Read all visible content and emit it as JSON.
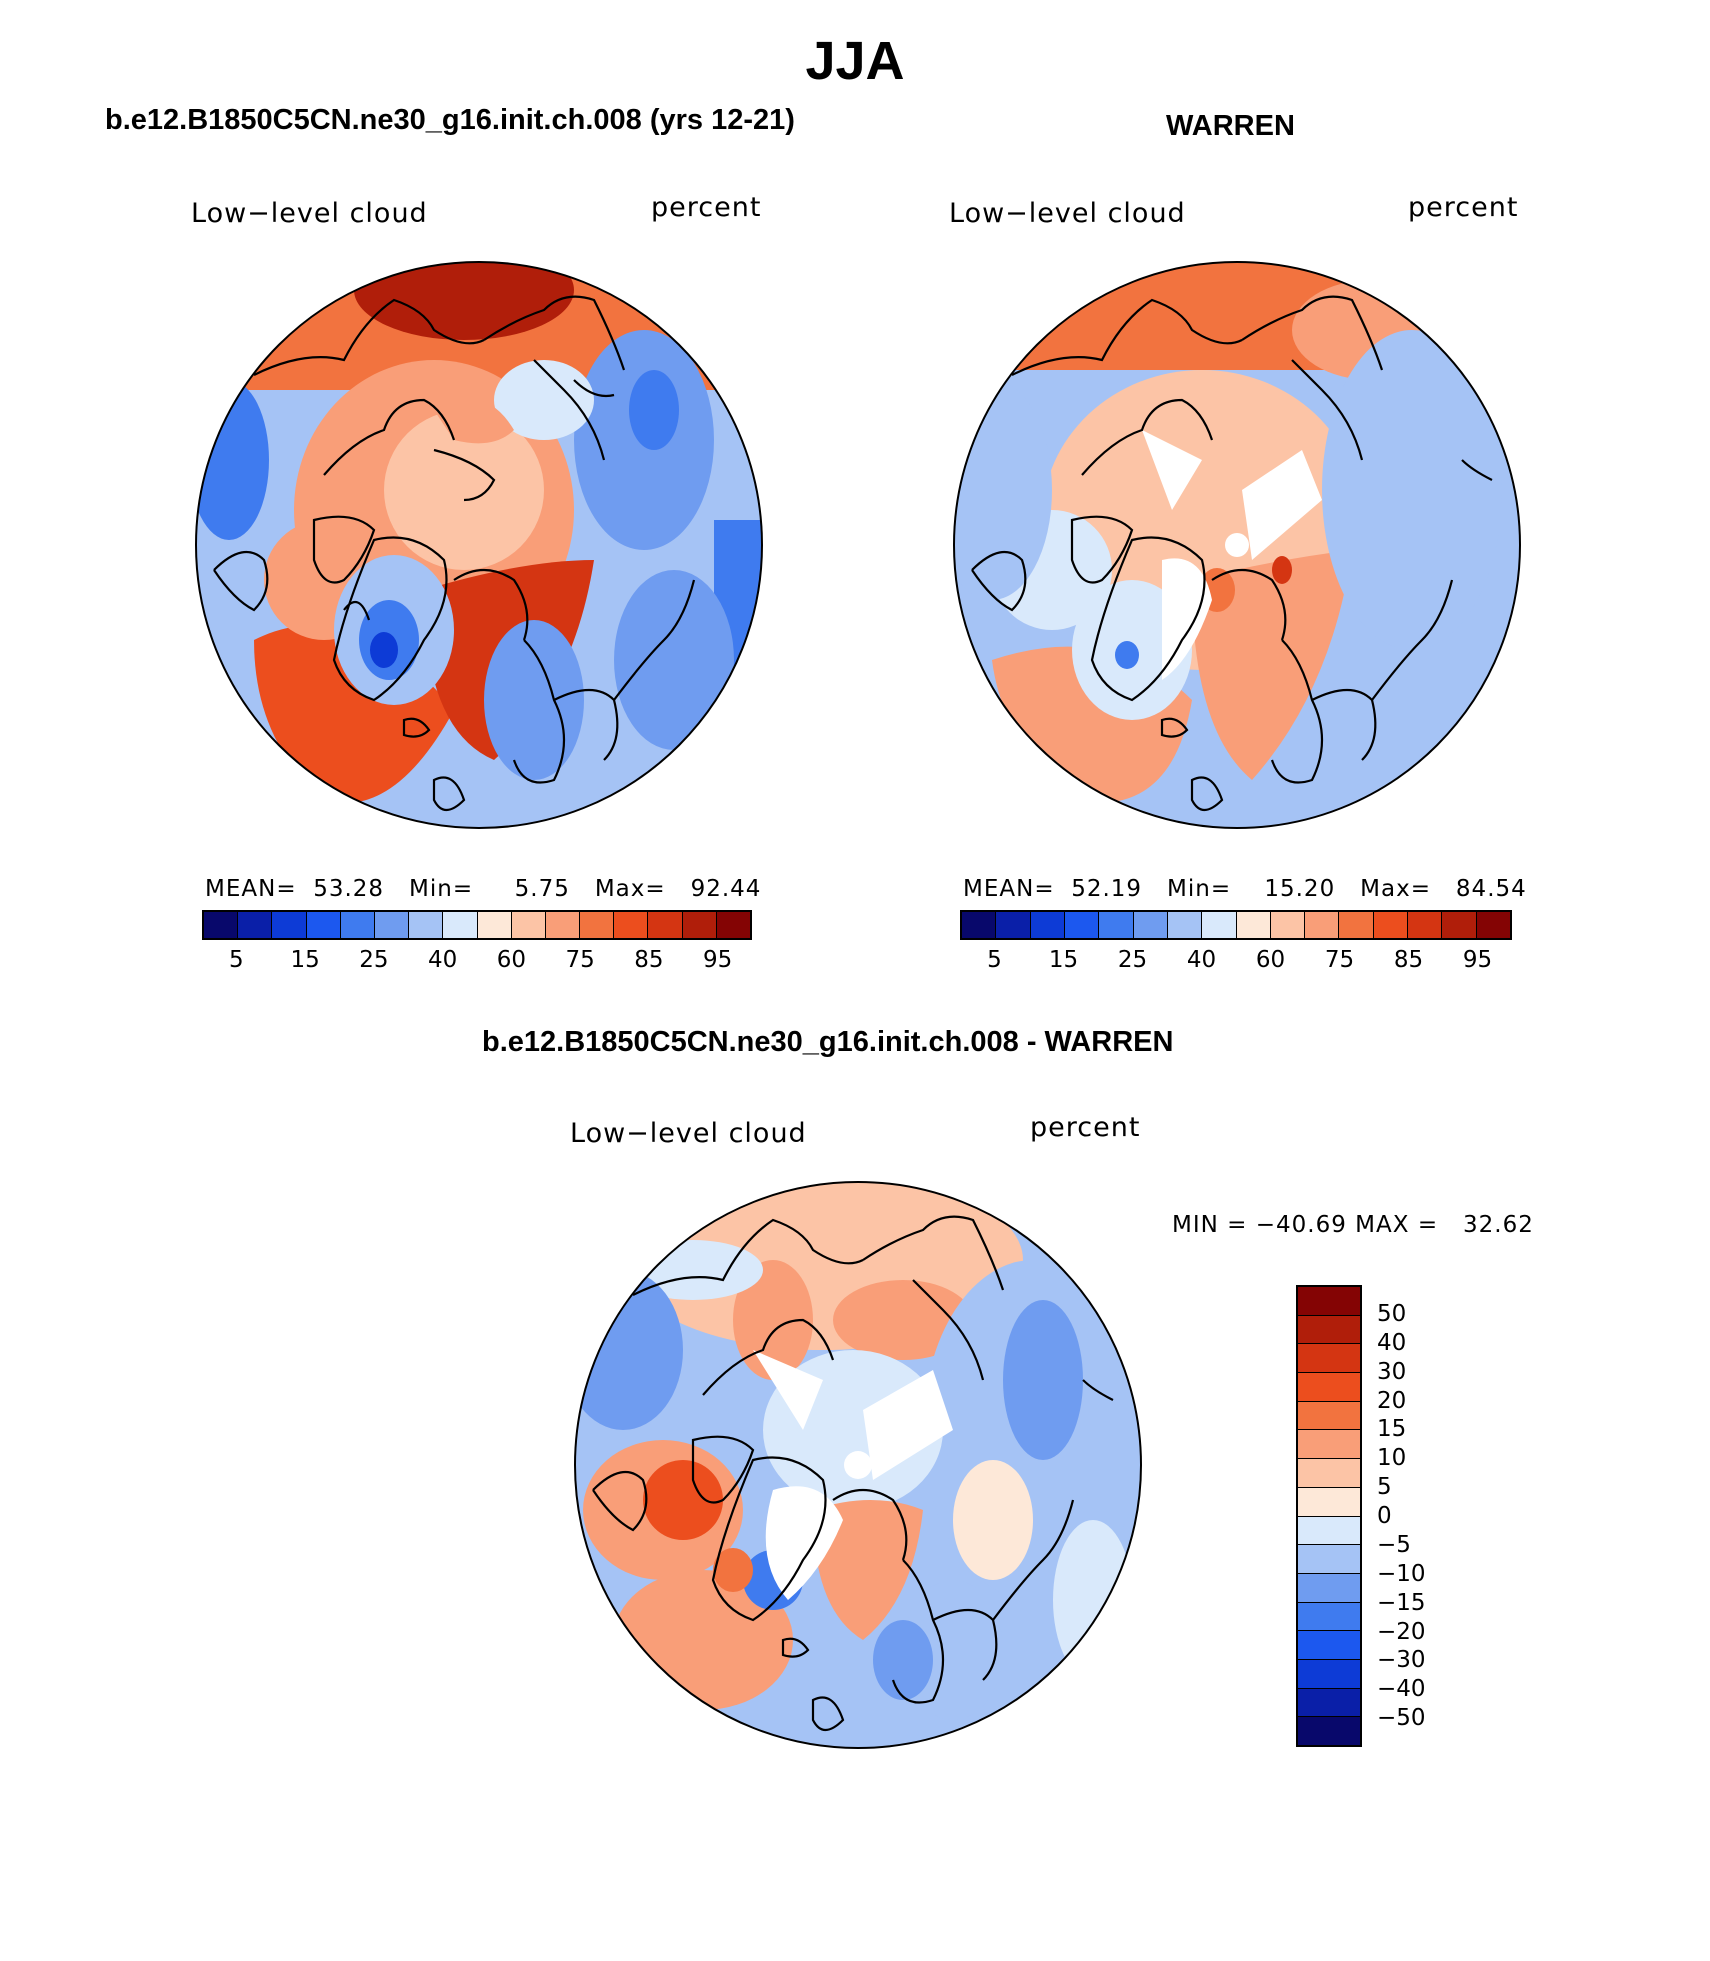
{
  "figure": {
    "title": "JJA"
  },
  "panels": {
    "model": {
      "title": "b.e12.B1850C5CN.ne30_g16.init.ch.008 (yrs 12-21)",
      "left_label": "Low−level cloud",
      "right_label": "percent",
      "stats": {
        "mean_label": "MEAN=",
        "mean": "53.28",
        "min_label": "Min=",
        "min": "5.75",
        "max_label": "Max=",
        "max": "92.44"
      }
    },
    "obs": {
      "title": "WARREN",
      "left_label": "Low−level cloud",
      "right_label": "percent",
      "stats": {
        "mean_label": "MEAN=",
        "mean": "52.19",
        "min_label": "Min=",
        "min": "15.20",
        "max_label": "Max=",
        "max": "84.54"
      }
    },
    "diff": {
      "title": "b.e12.B1850C5CN.ne30_g16.init.ch.008 - WARREN",
      "left_label": "Low−level cloud",
      "right_label": "percent",
      "stats": {
        "min_label": "MIN =",
        "min": "−40.69",
        "max_label": "MAX =",
        "max": "32.62"
      }
    }
  },
  "colorbars": {
    "absolute": {
      "colors": [
        "#08086b",
        "#0a1fa8",
        "#0d3bd6",
        "#1c58ef",
        "#3f7bef",
        "#6f9cf0",
        "#a5c3f5",
        "#d9e9fb",
        "#fde8d8",
        "#fcc4a6",
        "#f99e78",
        "#f2733f",
        "#ec4e1e",
        "#d43512",
        "#b01e0a",
        "#840404"
      ],
      "ticks": [
        "5",
        "15",
        "25",
        "40",
        "60",
        "75",
        "85",
        "95"
      ]
    },
    "difference": {
      "colors": [
        "#840404",
        "#b01e0a",
        "#d43512",
        "#ec4e1e",
        "#f2733f",
        "#f99e78",
        "#fcc4a6",
        "#fde8d8",
        "#d9e9fb",
        "#a5c3f5",
        "#6f9cf0",
        "#3f7bef",
        "#1c58ef",
        "#0d3bd6",
        "#0a1fa8",
        "#08086b"
      ],
      "ticks": [
        "50",
        "40",
        "30",
        "20",
        "15",
        "10",
        "5",
        "0",
        "−5",
        "−10",
        "−15",
        "−20",
        "−30",
        "−40",
        "−50"
      ]
    }
  }
}
